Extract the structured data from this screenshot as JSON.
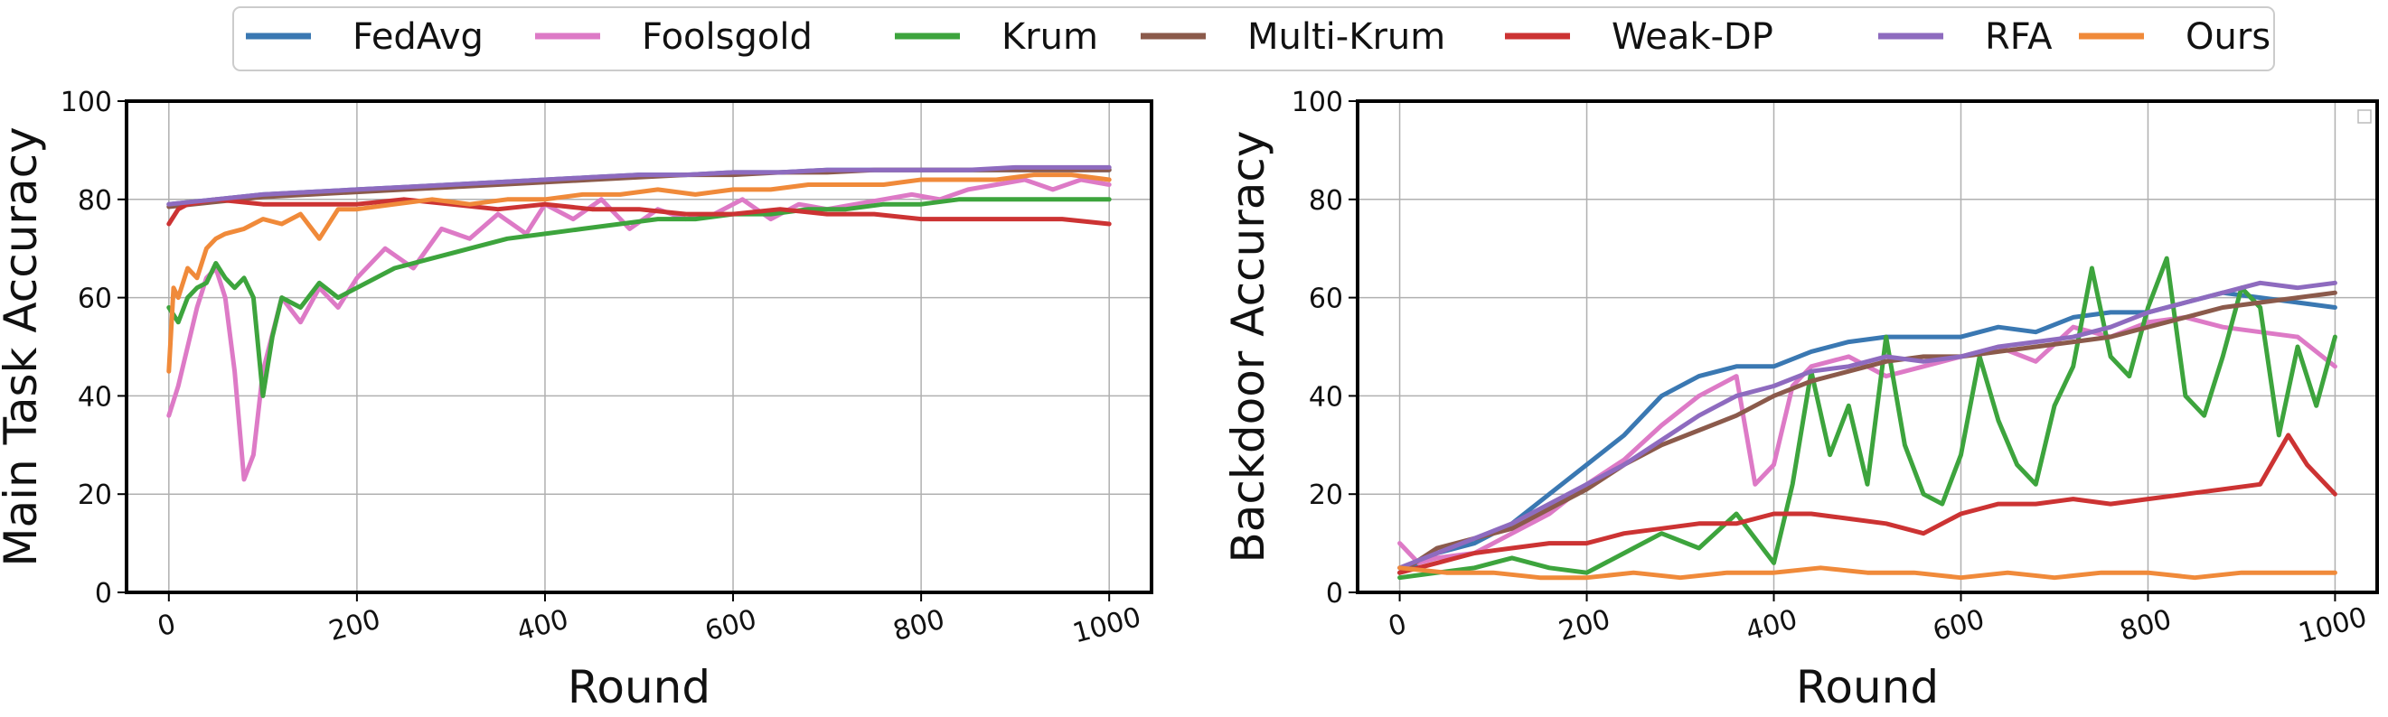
{
  "legend": {
    "placement": "top-center",
    "entries": [
      {
        "name": "FedAvg",
        "color": "#3a78b2"
      },
      {
        "name": "Foolsgold",
        "color": "#dd7ac6"
      },
      {
        "name": "Krum",
        "color": "#3da43d"
      },
      {
        "name": "Multi-Krum",
        "color": "#8b5a4b"
      },
      {
        "name": "Weak-DP",
        "color": "#cc3333"
      },
      {
        "name": "RFA",
        "color": "#8e6bbf"
      },
      {
        "name": "Ours",
        "color": "#f08a3a"
      }
    ]
  },
  "chart_data": [
    {
      "type": "line",
      "title": "",
      "xlabel": "Round",
      "ylabel": "Main Task Accuracy",
      "xlim": [
        -45,
        1045
      ],
      "ylim": [
        0,
        100
      ],
      "xticks": [
        0,
        200,
        400,
        600,
        800,
        1000
      ],
      "yticks": [
        0,
        20,
        40,
        60,
        80,
        100
      ],
      "grid": true,
      "series": [
        {
          "name": "FedAvg",
          "color": "#3a78b2",
          "x": [
            0,
            50,
            100,
            150,
            200,
            250,
            300,
            350,
            400,
            450,
            500,
            550,
            600,
            650,
            700,
            750,
            800,
            850,
            900,
            950,
            1000
          ],
          "y": [
            79,
            80,
            81,
            81.5,
            82,
            82.5,
            83,
            83.5,
            84,
            84.5,
            85,
            85,
            85.5,
            85.5,
            86,
            86,
            86,
            86,
            86,
            86,
            86
          ]
        },
        {
          "name": "Foolsgold",
          "color": "#dd7ac6",
          "x": [
            0,
            10,
            20,
            30,
            40,
            50,
            60,
            70,
            80,
            90,
            100,
            120,
            140,
            160,
            180,
            200,
            230,
            260,
            290,
            320,
            350,
            380,
            400,
            430,
            460,
            490,
            520,
            550,
            580,
            610,
            640,
            670,
            700,
            730,
            760,
            790,
            820,
            850,
            880,
            910,
            940,
            970,
            1000
          ],
          "y": [
            36,
            42,
            50,
            58,
            64,
            66,
            60,
            45,
            23,
            28,
            45,
            60,
            55,
            62,
            58,
            64,
            70,
            66,
            74,
            72,
            77,
            73,
            79,
            76,
            80,
            74,
            78,
            76,
            77,
            80,
            76,
            79,
            78,
            79,
            80,
            81,
            80,
            82,
            83,
            84,
            82,
            84,
            83
          ]
        },
        {
          "name": "Krum",
          "color": "#3da43d",
          "x": [
            0,
            10,
            20,
            30,
            40,
            50,
            60,
            70,
            80,
            90,
            100,
            110,
            120,
            140,
            160,
            180,
            200,
            240,
            280,
            320,
            360,
            400,
            440,
            480,
            520,
            560,
            600,
            640,
            680,
            720,
            760,
            800,
            840,
            880,
            920,
            960,
            1000
          ],
          "y": [
            58,
            55,
            60,
            62,
            63,
            67,
            64,
            62,
            64,
            60,
            40,
            52,
            60,
            58,
            63,
            60,
            62,
            66,
            68,
            70,
            72,
            73,
            74,
            75,
            76,
            76,
            77,
            77,
            78,
            78,
            79,
            79,
            80,
            80,
            80,
            80,
            80
          ]
        },
        {
          "name": "Multi-Krum",
          "color": "#8b5a4b",
          "x": [
            0,
            50,
            100,
            150,
            200,
            250,
            300,
            350,
            400,
            450,
            500,
            550,
            600,
            650,
            700,
            750,
            800,
            850,
            900,
            950,
            1000
          ],
          "y": [
            78.5,
            79.5,
            80.5,
            81,
            81.5,
            82,
            82.5,
            83,
            83.5,
            84,
            84.5,
            85,
            85,
            85.5,
            85.5,
            86,
            86,
            86,
            86,
            86,
            86
          ]
        },
        {
          "name": "Weak-DP",
          "color": "#cc3333",
          "x": [
            0,
            10,
            20,
            50,
            100,
            150,
            200,
            250,
            300,
            350,
            400,
            450,
            500,
            550,
            600,
            650,
            700,
            750,
            800,
            850,
            900,
            950,
            1000
          ],
          "y": [
            75,
            78,
            79,
            80,
            79,
            79,
            79,
            80,
            79,
            78,
            79,
            78,
            78,
            77,
            77,
            78,
            77,
            77,
            76,
            76,
            76,
            76,
            75
          ]
        },
        {
          "name": "RFA",
          "color": "#8e6bbf",
          "x": [
            0,
            50,
            100,
            150,
            200,
            250,
            300,
            350,
            400,
            450,
            500,
            550,
            600,
            650,
            700,
            750,
            800,
            850,
            900,
            950,
            1000
          ],
          "y": [
            79,
            80,
            81,
            81.5,
            82,
            82.5,
            83,
            83.5,
            84,
            84.5,
            85,
            85,
            85.5,
            85.5,
            86,
            86,
            86,
            86,
            86.5,
            86.5,
            86.5
          ]
        },
        {
          "name": "Ours",
          "color": "#f08a3a",
          "x": [
            0,
            5,
            10,
            20,
            30,
            40,
            50,
            60,
            80,
            100,
            120,
            140,
            160,
            180,
            200,
            240,
            280,
            320,
            360,
            400,
            440,
            480,
            520,
            560,
            600,
            640,
            680,
            720,
            760,
            800,
            840,
            880,
            920,
            960,
            1000
          ],
          "y": [
            45,
            62,
            60,
            66,
            64,
            70,
            72,
            73,
            74,
            76,
            75,
            77,
            72,
            78,
            78,
            79,
            80,
            79,
            80,
            80,
            81,
            81,
            82,
            81,
            82,
            82,
            83,
            83,
            83,
            84,
            84,
            84,
            85,
            85,
            84
          ]
        }
      ]
    },
    {
      "type": "line",
      "title": "",
      "xlabel": "Round",
      "ylabel": "Backdoor Accuracy",
      "xlim": [
        -45,
        1045
      ],
      "ylim": [
        0,
        100
      ],
      "xticks": [
        0,
        200,
        400,
        600,
        800,
        1000
      ],
      "yticks": [
        0,
        20,
        40,
        60,
        80,
        100
      ],
      "grid": true,
      "series": [
        {
          "name": "FedAvg",
          "color": "#3a78b2",
          "x": [
            0,
            40,
            80,
            120,
            160,
            200,
            240,
            280,
            320,
            360,
            400,
            440,
            480,
            520,
            560,
            600,
            640,
            680,
            720,
            760,
            800,
            840,
            880,
            920,
            960,
            1000
          ],
          "y": [
            4,
            8,
            10,
            14,
            20,
            26,
            32,
            40,
            44,
            46,
            46,
            49,
            51,
            52,
            52,
            52,
            54,
            53,
            56,
            57,
            57,
            59,
            61,
            60,
            59,
            58
          ]
        },
        {
          "name": "Foolsgold",
          "color": "#dd7ac6",
          "x": [
            0,
            20,
            40,
            80,
            120,
            160,
            200,
            240,
            280,
            320,
            360,
            380,
            400,
            420,
            440,
            480,
            520,
            560,
            600,
            640,
            680,
            720,
            760,
            800,
            840,
            880,
            920,
            960,
            1000
          ],
          "y": [
            10,
            6,
            7,
            8,
            12,
            16,
            22,
            27,
            34,
            40,
            44,
            22,
            26,
            42,
            46,
            48,
            44,
            46,
            48,
            50,
            47,
            54,
            52,
            55,
            56,
            54,
            53,
            52,
            46
          ]
        },
        {
          "name": "Krum",
          "color": "#3da43d",
          "x": [
            0,
            40,
            80,
            120,
            160,
            200,
            240,
            280,
            320,
            360,
            400,
            420,
            440,
            460,
            480,
            500,
            520,
            540,
            560,
            580,
            600,
            620,
            640,
            660,
            680,
            700,
            720,
            740,
            760,
            780,
            800,
            820,
            840,
            860,
            880,
            900,
            920,
            940,
            960,
            980,
            1000
          ],
          "y": [
            3,
            4,
            5,
            7,
            5,
            4,
            8,
            12,
            9,
            16,
            6,
            22,
            45,
            28,
            38,
            22,
            52,
            30,
            20,
            18,
            28,
            48,
            35,
            26,
            22,
            38,
            46,
            66,
            48,
            44,
            58,
            68,
            40,
            36,
            48,
            62,
            58,
            32,
            50,
            38,
            52
          ]
        },
        {
          "name": "Multi-Krum",
          "color": "#8b5a4b",
          "x": [
            0,
            40,
            80,
            120,
            160,
            200,
            240,
            280,
            320,
            360,
            400,
            440,
            480,
            520,
            560,
            600,
            640,
            680,
            720,
            760,
            800,
            840,
            880,
            920,
            960,
            1000
          ],
          "y": [
            4,
            9,
            11,
            13,
            17,
            21,
            26,
            30,
            33,
            36,
            40,
            43,
            45,
            47,
            48,
            48,
            49,
            50,
            51,
            52,
            54,
            56,
            58,
            59,
            60,
            61
          ]
        },
        {
          "name": "Weak-DP",
          "color": "#cc3333",
          "x": [
            0,
            40,
            80,
            120,
            160,
            200,
            240,
            280,
            320,
            360,
            400,
            440,
            480,
            520,
            560,
            600,
            640,
            680,
            720,
            760,
            800,
            840,
            880,
            920,
            950,
            970,
            1000
          ],
          "y": [
            4,
            6,
            8,
            9,
            10,
            10,
            12,
            13,
            14,
            14,
            16,
            16,
            15,
            14,
            12,
            16,
            18,
            18,
            19,
            18,
            19,
            20,
            21,
            22,
            32,
            26,
            20
          ]
        },
        {
          "name": "RFA",
          "color": "#8e6bbf",
          "x": [
            0,
            40,
            80,
            120,
            160,
            200,
            240,
            280,
            320,
            360,
            400,
            440,
            480,
            520,
            560,
            600,
            640,
            680,
            720,
            760,
            800,
            840,
            880,
            920,
            960,
            1000
          ],
          "y": [
            5,
            8,
            11,
            14,
            18,
            22,
            26,
            31,
            36,
            40,
            42,
            45,
            46,
            48,
            47,
            48,
            50,
            51,
            52,
            54,
            57,
            59,
            61,
            63,
            62,
            63
          ]
        },
        {
          "name": "Ours",
          "color": "#f08a3a",
          "x": [
            0,
            50,
            100,
            150,
            200,
            250,
            300,
            350,
            400,
            450,
            500,
            550,
            600,
            650,
            700,
            750,
            800,
            850,
            900,
            950,
            1000
          ],
          "y": [
            5,
            4,
            4,
            3,
            3,
            4,
            3,
            4,
            4,
            5,
            4,
            4,
            3,
            4,
            3,
            4,
            4,
            3,
            4,
            4,
            4
          ]
        }
      ]
    }
  ]
}
